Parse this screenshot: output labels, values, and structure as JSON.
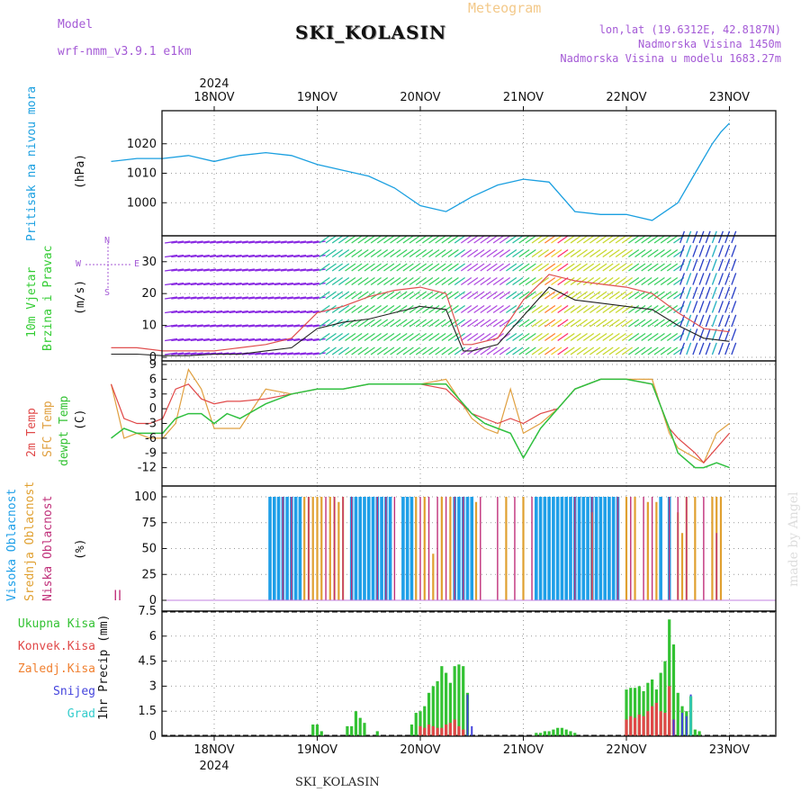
{
  "header": {
    "model_label": "Model",
    "model_name": "wrf-nmm_v3.9.1 e1km",
    "title": "SKI_KOLASIN",
    "meteogram": "Meteogram",
    "lonlat": "lon,lat (19.6312E, 42.8187N)",
    "elevation": "Nadmorska Visina 1450m",
    "model_elevation": "Nadmorska Visina u modelu 1683.27m"
  },
  "top_axis": {
    "year": "2024",
    "days": [
      "18NOV",
      "19NOV",
      "20NOV",
      "21NOV",
      "22NOV",
      "23NOV"
    ]
  },
  "bottom_axis": {
    "year": "2024",
    "days": [
      "18NOV",
      "19NOV",
      "20NOV",
      "21NOV",
      "22NOV",
      "23NOV"
    ]
  },
  "footer": "SKI_KOLASIN",
  "watermark": "made by Angel",
  "panel_labels": {
    "pressure": [
      "Pritisak na nivou mora"
    ],
    "pressure_unit": "(hPa)",
    "wind": [
      "10m Vjetar",
      "Brzina i Pravac"
    ],
    "wind_unit": "(m/s)",
    "compass": {
      "n": "N",
      "s": "S",
      "e": "E",
      "w": "W"
    },
    "temp": [
      "2m Temp",
      "SFC Temp",
      "dewpt Temp"
    ],
    "temp_unit": "(C)",
    "cloud": [
      "Visoka Oblacnost",
      "Srednja Oblacnost",
      "Niska Oblacnost"
    ],
    "cloud_unit": "(%)",
    "precip_legend": [
      "Ukupna Kisa",
      "Konvek.Kisa",
      "Zaledj.Kisa",
      "Snijeg",
      "Grad"
    ],
    "precip_unit": "1hr Precip (mm)"
  },
  "colors": {
    "pressure": "#1a9fe0",
    "wind_speed": "#222222",
    "wind_gust": "#e05050",
    "temp2m": "#e04848",
    "sfc": "#e0a040",
    "dew": "#30c040",
    "cloud_high": "#1e9fe8",
    "cloud_mid": "#e0a030",
    "cloud_low": "#c0307a",
    "precip_total": "#33c233",
    "precip_conv": "#e04848",
    "precip_frz": "#f08030",
    "precip_snow": "#4444dd",
    "precip_hail": "#33cccc",
    "legend_pressure_label": "#1a9fe0",
    "legend_wind": "#33cc33",
    "legend_compass": "#a45ad6"
  },
  "chart_data": [
    {
      "type": "line",
      "name": "pressure",
      "ylim": [
        990,
        1030
      ],
      "yticks": [
        1000,
        1010,
        1020
      ],
      "ylabel": "(hPa)",
      "x_hours": [
        0,
        6,
        12,
        18,
        24,
        30,
        36,
        42,
        48,
        54,
        60,
        66,
        72,
        78,
        84,
        90,
        96,
        102,
        108,
        114,
        120,
        126,
        132,
        136,
        140,
        142,
        144
      ],
      "series": [
        {
          "name": "Pritisak na nivou mora",
          "values": [
            1014,
            1015,
            1015,
            1016,
            1014,
            1016,
            1017,
            1016,
            1013,
            1011,
            1009,
            1005,
            999,
            997,
            1002,
            1006,
            1008,
            1007,
            997,
            996,
            996,
            994,
            1000,
            1010,
            1020,
            1024,
            1027
          ]
        }
      ]
    },
    {
      "type": "line",
      "name": "wind",
      "ylim": [
        0,
        37
      ],
      "yticks": [
        0,
        10,
        20,
        30
      ],
      "ylabel": "(m/s)",
      "x_hours": [
        0,
        6,
        12,
        18,
        24,
        30,
        36,
        42,
        48,
        54,
        60,
        66,
        72,
        78,
        82,
        84,
        90,
        96,
        102,
        108,
        114,
        120,
        126,
        132,
        138,
        144
      ],
      "series": [
        {
          "name": "speed",
          "values": [
            1,
            1,
            0.5,
            0.5,
            1,
            1,
            2,
            3,
            9,
            11,
            12,
            14,
            16,
            15,
            2,
            2,
            4,
            13,
            22,
            18,
            17,
            16,
            15,
            10,
            6,
            5
          ]
        },
        {
          "name": "gust",
          "values": [
            3,
            3,
            2,
            2,
            2,
            3,
            4,
            6,
            14,
            16,
            19,
            21,
            22,
            20,
            4,
            4,
            6,
            18,
            26,
            24,
            23,
            22,
            20,
            14,
            9,
            8
          ]
        }
      ]
    },
    {
      "type": "line",
      "name": "temperature",
      "ylim": [
        -15,
        9
      ],
      "yticks": [
        -12,
        -9,
        -6,
        -3,
        0,
        3,
        6,
        9
      ],
      "ylabel": "(C)",
      "x_hours": [
        0,
        3,
        6,
        9,
        12,
        15,
        18,
        21,
        24,
        27,
        30,
        36,
        42,
        48,
        54,
        60,
        66,
        72,
        78,
        84,
        87,
        90,
        93,
        96,
        100,
        104,
        108,
        114,
        120,
        126,
        130,
        132,
        136,
        138,
        141,
        144
      ],
      "series": [
        {
          "name": "2m Temp",
          "values": [
            5,
            -2,
            -3,
            -3,
            -2,
            4,
            5,
            2,
            1,
            1.5,
            1.5,
            2,
            3,
            4,
            4,
            5,
            5,
            5,
            4,
            -1,
            -2,
            -3,
            -2,
            -3,
            -1,
            0,
            4,
            6,
            6,
            5,
            -4,
            -6,
            -9,
            -11,
            -8,
            -5
          ]
        },
        {
          "name": "SFC Temp",
          "values": [
            5,
            -6,
            -5,
            -6,
            -6,
            -3,
            8,
            4,
            -4,
            -4,
            -4,
            4,
            3,
            4,
            4,
            5,
            5,
            5,
            6,
            -2,
            -4,
            -5,
            4,
            -5,
            -3,
            0,
            4,
            6,
            6,
            6,
            -5,
            -8,
            -10,
            -11,
            -5,
            -3
          ]
        },
        {
          "name": "dewpt Temp",
          "values": [
            -6,
            -4,
            -5,
            -5,
            -5,
            -2,
            -1,
            -1,
            -3,
            -1,
            -2,
            1,
            3,
            4,
            4,
            5,
            5,
            5,
            5,
            -1,
            -3,
            -4,
            -5,
            -10,
            -4,
            0,
            4,
            6,
            6,
            5,
            -4,
            -9,
            -12,
            -12,
            -11,
            -12
          ]
        }
      ]
    },
    {
      "type": "bar",
      "name": "cloud cover",
      "ylim": [
        0,
        100
      ],
      "yticks": [
        0,
        25,
        50,
        75,
        100
      ],
      "ylabel": "(%)",
      "series": [
        {
          "name": "Visoka Oblacnost",
          "x_hours": [
            37,
            38,
            39,
            40,
            41,
            42,
            43,
            44,
            56,
            57,
            58,
            59,
            60,
            61,
            62,
            63,
            64,
            65,
            68,
            69,
            70,
            80,
            81,
            82,
            83,
            84,
            99,
            100,
            101,
            102,
            103,
            104,
            105,
            106,
            107,
            108,
            109,
            110,
            111,
            112,
            113,
            114,
            115,
            116,
            117,
            118,
            128,
            130
          ],
          "values": [
            100,
            100,
            100,
            100,
            100,
            100,
            100,
            100,
            100,
            100,
            100,
            100,
            100,
            100,
            100,
            100,
            100,
            100,
            100,
            100,
            100,
            100,
            100,
            100,
            100,
            100,
            100,
            100,
            100,
            100,
            100,
            100,
            100,
            100,
            100,
            100,
            100,
            100,
            100,
            100,
            100,
            100,
            100,
            100,
            100,
            100,
            100,
            100
          ]
        },
        {
          "name": "Srednja Oblacnost",
          "x_hours": [
            45,
            46,
            47,
            48,
            49,
            51,
            52,
            53,
            54,
            71,
            73,
            75,
            77,
            79,
            85,
            92,
            96,
            112,
            120,
            122,
            125,
            127,
            132,
            133,
            134,
            136,
            140,
            141,
            142
          ],
          "values": [
            100,
            100,
            100,
            100,
            100,
            100,
            100,
            95,
            100,
            100,
            100,
            45,
            100,
            100,
            95,
            100,
            100,
            85,
            100,
            100,
            95,
            95,
            85,
            65,
            100,
            100,
            100,
            100,
            100
          ]
        },
        {
          "name": "Niska Oblacnost",
          "x_hours": [
            1,
            2,
            40,
            42,
            46,
            50,
            52,
            54,
            56,
            62,
            64,
            66,
            72,
            74,
            76,
            78,
            80,
            82,
            86,
            90,
            94,
            98,
            108,
            112,
            118,
            121,
            124,
            126,
            130,
            132,
            134,
            138,
            141
          ],
          "values": [
            10,
            10,
            100,
            100,
            100,
            100,
            100,
            100,
            100,
            100,
            100,
            100,
            100,
            100,
            100,
            100,
            100,
            100,
            100,
            100,
            100,
            100,
            100,
            100,
            100,
            100,
            100,
            100,
            100,
            100,
            100,
            100,
            65
          ]
        }
      ]
    },
    {
      "type": "bar",
      "name": "1hr precipitation",
      "ylim": [
        0,
        7.5
      ],
      "yticks": [
        0,
        1.5,
        3,
        4.5,
        6,
        7.5
      ],
      "ylabel": "1hr Precip (mm)",
      "series": [
        {
          "name": "Ukupna Kisa",
          "x_hours": [
            47,
            48,
            49,
            55,
            56,
            57,
            58,
            59,
            62,
            70,
            71,
            72,
            73,
            74,
            75,
            76,
            77,
            78,
            79,
            80,
            81,
            82,
            83,
            99,
            100,
            101,
            102,
            103,
            104,
            105,
            106,
            107,
            108,
            120,
            121,
            122,
            123,
            124,
            125,
            126,
            127,
            128,
            129,
            130,
            131,
            132,
            133,
            134,
            135,
            136,
            137
          ],
          "values": [
            0.7,
            0.7,
            0.3,
            0.6,
            0.6,
            1.5,
            1.1,
            0.8,
            0.3,
            0.7,
            1.4,
            1.5,
            1.8,
            2.6,
            3.0,
            3.3,
            4.2,
            3.8,
            3.2,
            4.2,
            4.3,
            4.2,
            2.6,
            0.2,
            0.2,
            0.3,
            0.3,
            0.4,
            0.5,
            0.5,
            0.4,
            0.3,
            0.2,
            2.8,
            2.9,
            2.9,
            3.0,
            2.7,
            3.2,
            3.4,
            2.8,
            3.8,
            4.5,
            7.0,
            5.5,
            2.6,
            1.8,
            1.5,
            2.4,
            0.4,
            0.3
          ]
        },
        {
          "name": "Konvek.Kisa",
          "x_hours": [
            72,
            73,
            74,
            75,
            76,
            77,
            78,
            79,
            80,
            81,
            82,
            120,
            121,
            122,
            123,
            124,
            125,
            126,
            127,
            128,
            129,
            130,
            131
          ],
          "values": [
            0.6,
            0.5,
            0.7,
            0.6,
            0.5,
            0.5,
            0.7,
            0.8,
            1.0,
            0.6,
            0.4,
            1.0,
            1.2,
            1.1,
            1.3,
            1.2,
            1.5,
            1.8,
            2.0,
            1.5,
            1.4,
            3.0,
            1.0
          ]
        },
        {
          "name": "Zaledj.Kisa",
          "x_hours": [],
          "values": []
        },
        {
          "name": "Snijeg",
          "x_hours": [
            83,
            84,
            131,
            133,
            134,
            135
          ],
          "values": [
            2.5,
            0.6,
            1.0,
            1.4,
            1.2,
            2.5
          ]
        },
        {
          "name": "Grad",
          "x_hours": [
            135
          ],
          "values": [
            2.4
          ]
        }
      ]
    }
  ]
}
